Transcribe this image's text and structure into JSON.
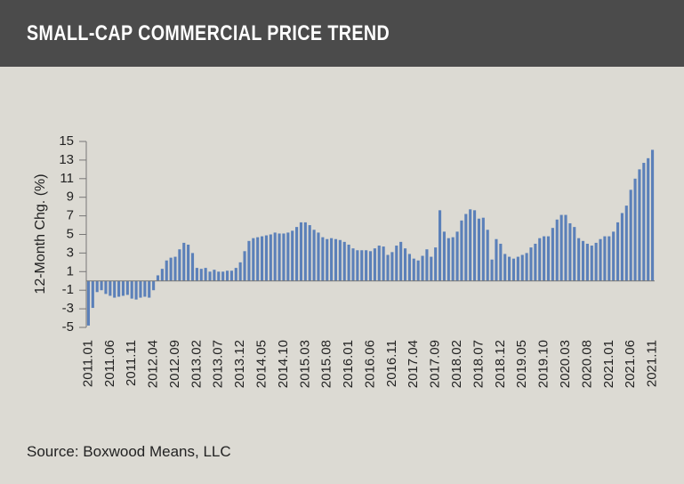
{
  "chart_data": {
    "type": "bar",
    "title": "SMALL-CAP COMMERCIAL PRICE TREND",
    "source": "Source: Boxwood Means, LLC",
    "y_label": "12-Month Chg. (%)",
    "color": "#5b80b9",
    "categories": [
      "2011.01",
      null,
      null,
      null,
      null,
      "2011.06",
      null,
      null,
      null,
      null,
      "2011.11",
      null,
      null,
      null,
      null,
      "2012.04",
      null,
      null,
      null,
      null,
      "2012.09",
      null,
      null,
      null,
      null,
      "2013.02",
      null,
      null,
      null,
      null,
      "2013.07",
      null,
      null,
      null,
      null,
      "2013.12",
      null,
      null,
      null,
      null,
      "2014.05",
      null,
      null,
      null,
      null,
      "2014.10",
      null,
      null,
      null,
      null,
      "2015.03",
      null,
      null,
      null,
      null,
      "2015.08",
      null,
      null,
      null,
      null,
      "2016.01",
      null,
      null,
      null,
      null,
      "2016.06",
      null,
      null,
      null,
      null,
      "2016.11",
      null,
      null,
      null,
      null,
      "2017.04",
      null,
      null,
      null,
      null,
      "2017.09",
      null,
      null,
      null,
      null,
      "2018.02",
      null,
      null,
      null,
      null,
      "2018.07",
      null,
      null,
      null,
      null,
      "2018.12",
      null,
      null,
      null,
      null,
      "2019.05",
      null,
      null,
      null,
      null,
      "2019.10",
      null,
      null,
      null,
      null,
      "2020.03",
      null,
      null,
      null,
      null,
      "2020.08",
      null,
      null,
      null,
      null,
      "2021.01",
      null,
      null,
      null,
      null,
      "2021.06",
      null,
      null,
      null,
      null,
      "2021.11"
    ],
    "values": [
      -4.8,
      -2.9,
      -1.2,
      -1.0,
      -1.4,
      -1.6,
      -1.8,
      -1.7,
      -1.6,
      -1.5,
      -1.9,
      -2.0,
      -1.8,
      -1.7,
      -1.8,
      -1.0,
      0.6,
      1.3,
      2.2,
      2.5,
      2.6,
      3.4,
      4.1,
      3.9,
      3.0,
      1.4,
      1.3,
      1.4,
      1.0,
      1.2,
      1.0,
      1.0,
      1.1,
      1.1,
      1.4,
      2.0,
      3.2,
      4.3,
      4.6,
      4.7,
      4.8,
      4.9,
      5.0,
      5.2,
      5.1,
      5.1,
      5.2,
      5.4,
      5.8,
      6.3,
      6.3,
      6.0,
      5.5,
      5.2,
      4.7,
      4.5,
      4.6,
      4.5,
      4.4,
      4.2,
      3.9,
      3.5,
      3.3,
      3.3,
      3.3,
      3.2,
      3.5,
      3.8,
      3.7,
      2.8,
      3.1,
      3.8,
      4.2,
      3.5,
      2.9,
      2.4,
      2.2,
      2.7,
      3.4,
      2.6,
      3.6,
      7.6,
      5.3,
      4.6,
      4.7,
      5.3,
      6.5,
      7.2,
      7.7,
      7.6,
      6.7,
      6.8,
      5.5,
      2.3,
      4.5,
      4.0,
      2.9,
      2.6,
      2.4,
      2.6,
      2.8,
      3.0,
      3.6,
      4.0,
      4.6,
      4.8,
      4.8,
      5.7,
      6.6,
      7.1,
      7.1,
      6.2,
      5.8,
      4.6,
      4.3,
      4.0,
      3.8,
      4.1,
      4.5,
      4.8,
      4.8,
      5.3,
      6.3,
      7.3,
      8.1,
      9.8,
      11.0,
      12.0,
      12.7,
      13.2,
      14.1
    ],
    "ylim": [
      -5,
      15
    ],
    "yticks": [
      -5,
      -3,
      -1,
      1,
      3,
      5,
      7,
      9,
      11,
      13,
      15
    ]
  }
}
